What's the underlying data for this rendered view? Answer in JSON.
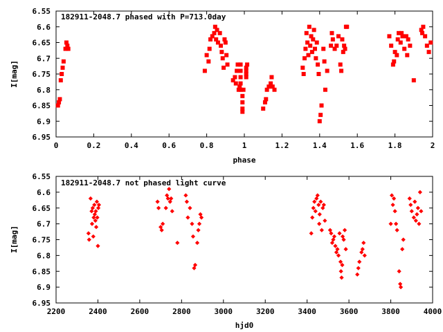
{
  "chart_data": [
    {
      "type": "scatter",
      "title": "182911-2048.7 phased with P=713.0day",
      "xlabel": "phase",
      "ylabel": "I[mag]",
      "xlim": [
        0,
        2
      ],
      "ylim": [
        6.55,
        6.95
      ],
      "y_inverted": true,
      "x_ticks": [
        "0",
        "0.2",
        "0.4",
        "0.6",
        "0.8",
        "1",
        "1.2",
        "1.4",
        "1.6",
        "1.8",
        "2"
      ],
      "y_ticks": [
        "6.55",
        "6.6",
        "6.65",
        "6.7",
        "6.75",
        "6.8",
        "6.85",
        "6.9",
        "6.95"
      ],
      "grid": false,
      "marker_color": "#ff0000",
      "points": [
        [
          0.01,
          6.85
        ],
        [
          0.015,
          6.84
        ],
        [
          0.02,
          6.83
        ],
        [
          0.025,
          6.77
        ],
        [
          0.03,
          6.75
        ],
        [
          0.035,
          6.73
        ],
        [
          0.04,
          6.71
        ],
        [
          0.05,
          6.67
        ],
        [
          0.055,
          6.65
        ],
        [
          0.06,
          6.66
        ],
        [
          0.065,
          6.67
        ],
        [
          0.79,
          6.74
        ],
        [
          0.8,
          6.69
        ],
        [
          0.81,
          6.71
        ],
        [
          0.815,
          6.67
        ],
        [
          0.82,
          6.64
        ],
        [
          0.83,
          6.63
        ],
        [
          0.84,
          6.62
        ],
        [
          0.845,
          6.6
        ],
        [
          0.85,
          6.64
        ],
        [
          0.855,
          6.61
        ],
        [
          0.86,
          6.65
        ],
        [
          0.87,
          6.62
        ],
        [
          0.875,
          6.66
        ],
        [
          0.88,
          6.68
        ],
        [
          0.885,
          6.7
        ],
        [
          0.89,
          6.73
        ],
        [
          0.895,
          6.64
        ],
        [
          0.9,
          6.65
        ],
        [
          0.905,
          6.69
        ],
        [
          0.91,
          6.72
        ],
        [
          0.94,
          6.77
        ],
        [
          0.95,
          6.76
        ],
        [
          0.955,
          6.78
        ],
        [
          0.96,
          6.74
        ],
        [
          0.965,
          6.72
        ],
        [
          0.97,
          6.8
        ],
        [
          0.975,
          6.79
        ],
        [
          0.98,
          6.72
        ],
        [
          0.98,
          6.74
        ],
        [
          0.98,
          6.76
        ],
        [
          0.98,
          6.78
        ],
        [
          0.98,
          6.8
        ],
        [
          0.99,
          6.82
        ],
        [
          0.99,
          6.84
        ],
        [
          0.99,
          6.86
        ],
        [
          0.99,
          6.87
        ],
        [
          0.995,
          6.8
        ],
        [
          1.01,
          6.73
        ],
        [
          1.01,
          6.74
        ],
        [
          1.01,
          6.75
        ],
        [
          1.01,
          6.76
        ],
        [
          1.015,
          6.72
        ],
        [
          1.1,
          6.86
        ],
        [
          1.11,
          6.84
        ],
        [
          1.115,
          6.83
        ],
        [
          1.12,
          6.8
        ],
        [
          1.13,
          6.79
        ],
        [
          1.14,
          6.78
        ],
        [
          1.145,
          6.76
        ],
        [
          1.15,
          6.79
        ],
        [
          1.16,
          6.8
        ],
        [
          1.31,
          6.73
        ],
        [
          1.315,
          6.75
        ],
        [
          1.32,
          6.7
        ],
        [
          1.325,
          6.67
        ],
        [
          1.33,
          6.62
        ],
        [
          1.335,
          6.65
        ],
        [
          1.34,
          6.69
        ],
        [
          1.345,
          6.6
        ],
        [
          1.35,
          6.66
        ],
        [
          1.355,
          6.63
        ],
        [
          1.36,
          6.68
        ],
        [
          1.365,
          6.64
        ],
        [
          1.37,
          6.61
        ],
        [
          1.375,
          6.67
        ],
        [
          1.38,
          6.7
        ],
        [
          1.385,
          6.65
        ],
        [
          1.39,
          6.72
        ],
        [
          1.395,
          6.75
        ],
        [
          1.4,
          6.9
        ],
        [
          1.405,
          6.88
        ],
        [
          1.41,
          6.85
        ],
        [
          1.42,
          6.67
        ],
        [
          1.425,
          6.71
        ],
        [
          1.43,
          6.8
        ],
        [
          1.44,
          6.74
        ],
        [
          1.46,
          6.66
        ],
        [
          1.465,
          6.62
        ],
        [
          1.47,
          6.64
        ],
        [
          1.48,
          6.67
        ],
        [
          1.49,
          6.66
        ],
        [
          1.5,
          6.63
        ],
        [
          1.51,
          6.72
        ],
        [
          1.515,
          6.74
        ],
        [
          1.52,
          6.64
        ],
        [
          1.525,
          6.68
        ],
        [
          1.53,
          6.66
        ],
        [
          1.535,
          6.67
        ],
        [
          1.54,
          6.6
        ],
        [
          1.545,
          6.6
        ],
        [
          1.77,
          6.63
        ],
        [
          1.78,
          6.66
        ],
        [
          1.79,
          6.72
        ],
        [
          1.795,
          6.71
        ],
        [
          1.8,
          6.68
        ],
        [
          1.81,
          6.69
        ],
        [
          1.815,
          6.64
        ],
        [
          1.82,
          6.62
        ],
        [
          1.83,
          6.65
        ],
        [
          1.835,
          6.62
        ],
        [
          1.84,
          6.63
        ],
        [
          1.85,
          6.67
        ],
        [
          1.86,
          6.63
        ],
        [
          1.865,
          6.69
        ],
        [
          1.87,
          6.64
        ],
        [
          1.88,
          6.66
        ],
        [
          1.9,
          6.77
        ],
        [
          1.94,
          6.61
        ],
        [
          1.945,
          6.62
        ],
        [
          1.95,
          6.6
        ],
        [
          1.96,
          6.63
        ],
        [
          1.97,
          6.66
        ],
        [
          1.98,
          6.68
        ],
        [
          1.99,
          6.65
        ]
      ]
    },
    {
      "type": "scatter",
      "title": "182911-2048.7 not phased light curve",
      "xlabel": "hjd0",
      "ylabel": "I[mag]",
      "xlim": [
        2200,
        4000
      ],
      "ylim": [
        6.55,
        6.95
      ],
      "y_inverted": true,
      "x_ticks": [
        "2200",
        "2400",
        "2600",
        "2800",
        "3000",
        "3200",
        "3400",
        "3600",
        "3800",
        "4000"
      ],
      "y_ticks": [
        "6.55",
        "6.6",
        "6.65",
        "6.7",
        "6.75",
        "6.8",
        "6.85",
        "6.9",
        "6.95"
      ],
      "grid": false,
      "marker_color": "#ff0000",
      "points": [
        [
          2355,
          6.73
        ],
        [
          2358,
          6.75
        ],
        [
          2365,
          6.62
        ],
        [
          2370,
          6.66
        ],
        [
          2372,
          6.7
        ],
        [
          2375,
          6.65
        ],
        [
          2378,
          6.74
        ],
        [
          2380,
          6.68
        ],
        [
          2383,
          6.64
        ],
        [
          2385,
          6.67
        ],
        [
          2388,
          6.69
        ],
        [
          2390,
          6.66
        ],
        [
          2392,
          6.71
        ],
        [
          2395,
          6.63
        ],
        [
          2397,
          6.68
        ],
        [
          2400,
          6.77
        ],
        [
          2402,
          6.65
        ],
        [
          2405,
          6.64
        ],
        [
          2685,
          6.63
        ],
        [
          2690,
          6.65
        ],
        [
          2700,
          6.71
        ],
        [
          2705,
          6.72
        ],
        [
          2710,
          6.7
        ],
        [
          2725,
          6.65
        ],
        [
          2730,
          6.61
        ],
        [
          2735,
          6.62
        ],
        [
          2740,
          6.59
        ],
        [
          2745,
          6.63
        ],
        [
          2750,
          6.62
        ],
        [
          2755,
          6.66
        ],
        [
          2780,
          6.76
        ],
        [
          2820,
          6.61
        ],
        [
          2825,
          6.63
        ],
        [
          2830,
          6.68
        ],
        [
          2840,
          6.65
        ],
        [
          2850,
          6.7
        ],
        [
          2855,
          6.74
        ],
        [
          2860,
          6.84
        ],
        [
          2865,
          6.83
        ],
        [
          2875,
          6.76
        ],
        [
          2880,
          6.72
        ],
        [
          2885,
          6.7
        ],
        [
          2890,
          6.67
        ],
        [
          2895,
          6.68
        ],
        [
          3420,
          6.73
        ],
        [
          3425,
          6.68
        ],
        [
          3430,
          6.65
        ],
        [
          3435,
          6.63
        ],
        [
          3440,
          6.66
        ],
        [
          3445,
          6.62
        ],
        [
          3450,
          6.61
        ],
        [
          3455,
          6.64
        ],
        [
          3458,
          6.7
        ],
        [
          3460,
          6.67
        ],
        [
          3465,
          6.63
        ],
        [
          3470,
          6.72
        ],
        [
          3475,
          6.65
        ],
        [
          3480,
          6.64
        ],
        [
          3485,
          6.69
        ],
        [
          3510,
          6.72
        ],
        [
          3515,
          6.73
        ],
        [
          3520,
          6.76
        ],
        [
          3525,
          6.75
        ],
        [
          3530,
          6.74
        ],
        [
          3535,
          6.77
        ],
        [
          3540,
          6.79
        ],
        [
          3545,
          6.78
        ],
        [
          3550,
          6.8
        ],
        [
          3555,
          6.73
        ],
        [
          3560,
          6.82
        ],
        [
          3562,
          6.85
        ],
        [
          3565,
          6.87
        ],
        [
          3568,
          6.83
        ],
        [
          3570,
          6.74
        ],
        [
          3575,
          6.75
        ],
        [
          3580,
          6.72
        ],
        [
          3585,
          6.78
        ],
        [
          3640,
          6.86
        ],
        [
          3645,
          6.84
        ],
        [
          3650,
          6.82
        ],
        [
          3660,
          6.79
        ],
        [
          3665,
          6.78
        ],
        [
          3670,
          6.76
        ],
        [
          3675,
          6.8
        ],
        [
          3800,
          6.7
        ],
        [
          3805,
          6.61
        ],
        [
          3810,
          6.64
        ],
        [
          3815,
          6.62
        ],
        [
          3820,
          6.66
        ],
        [
          3825,
          6.7
        ],
        [
          3830,
          6.72
        ],
        [
          3840,
          6.85
        ],
        [
          3845,
          6.89
        ],
        [
          3848,
          6.9
        ],
        [
          3855,
          6.78
        ],
        [
          3860,
          6.75
        ],
        [
          3890,
          6.62
        ],
        [
          3895,
          6.64
        ],
        [
          3900,
          6.66
        ],
        [
          3910,
          6.68
        ],
        [
          3915,
          6.63
        ],
        [
          3920,
          6.69
        ],
        [
          3925,
          6.67
        ],
        [
          3930,
          6.65
        ],
        [
          3935,
          6.7
        ],
        [
          3940,
          6.6
        ],
        [
          3945,
          6.66
        ]
      ]
    }
  ]
}
